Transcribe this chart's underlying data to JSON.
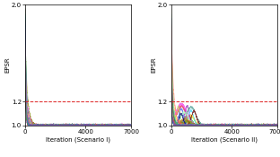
{
  "xlim": [
    0,
    7000
  ],
  "ylim": [
    1.0,
    2.0
  ],
  "yticks": [
    1.0,
    1.2,
    2.0
  ],
  "xticks": [
    0,
    4000,
    7000
  ],
  "hline_y": 1.2,
  "hline_color": "#dd2222",
  "hline_style": "--",
  "ylabel": "EPSR",
  "xlabel_1": "Iteration (Scenario I)",
  "xlabel_2": "Iteration (Scenario II)",
  "n_chains_1": 30,
  "n_chains_2": 30,
  "background_color": "#ffffff",
  "label_fontsize": 5,
  "tick_fontsize": 5,
  "line_alpha": 0.7,
  "line_width": 0.35,
  "seed_1": 42,
  "seed_2": 99,
  "colors": [
    "#e6194b",
    "#3cb44b",
    "#ffe119",
    "#4363d8",
    "#f58231",
    "#911eb4",
    "#42d4f4",
    "#f032e6",
    "#bfef45",
    "#469990",
    "#9A6324",
    "#800000",
    "#aaffc3",
    "#808000",
    "#000075",
    "#808080",
    "#a9a9a9",
    "#005c5c",
    "#e6005c",
    "#00b3b3",
    "#b3b300",
    "#7f00b3",
    "#ff6666",
    "#66b3ff",
    "#99ff99",
    "#ffb366",
    "#c0392b",
    "#27ae60",
    "#2980b9",
    "#8e44ad"
  ]
}
